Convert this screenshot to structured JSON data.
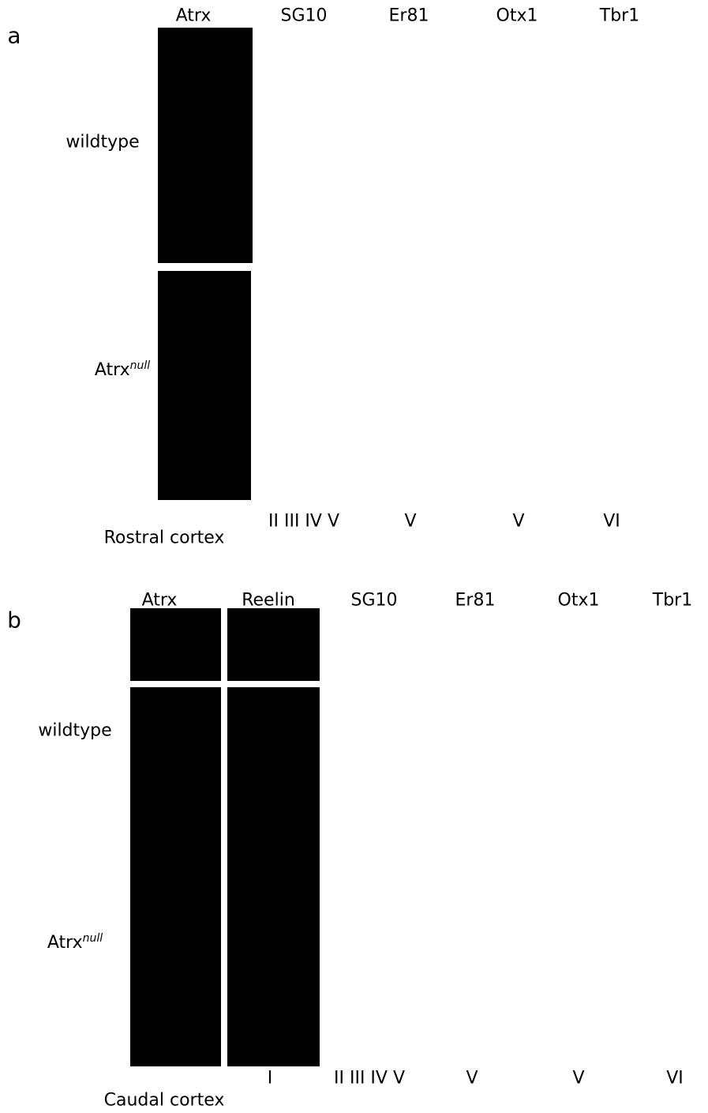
{
  "panels": [
    {
      "letter": "a",
      "columns": [
        "Atrx",
        "SG10",
        "Er81",
        "Otx1",
        "Tbr1"
      ],
      "rows": [
        {
          "label": "wildtype"
        },
        {
          "label": "Atrx",
          "superscript": "null"
        }
      ],
      "layers": [
        "II III IV V",
        "V",
        "V",
        "VI"
      ],
      "caption": "Rostral cortex"
    },
    {
      "letter": "b",
      "columns": [
        "Atrx",
        "Reelin",
        "SG10",
        "Er81",
        "Otx1",
        "Tbr1"
      ],
      "rows": [
        {
          "label": "wildtype"
        },
        {
          "label": "Atrx",
          "superscript": "null"
        }
      ],
      "layers": [
        "I",
        "II III IV V",
        "V",
        "V",
        "VI"
      ],
      "caption": "Caudal cortex"
    }
  ]
}
